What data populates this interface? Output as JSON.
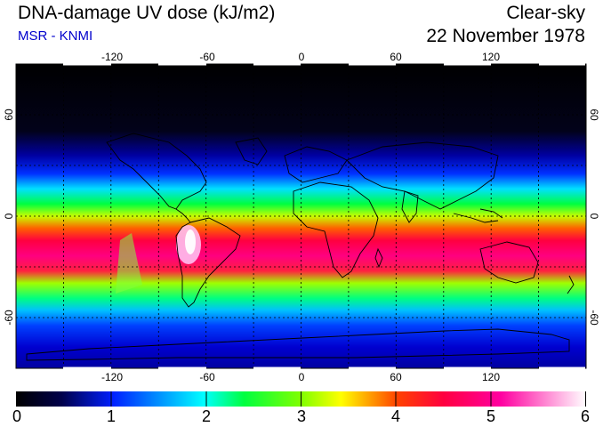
{
  "title": "DNA-damage UV dose (kJ/m2)",
  "source": "MSR - KNMI",
  "condition": "Clear-sky",
  "date": "22 November 1978",
  "colors": {
    "source_text": "#0000cc",
    "scale": [
      "#000000",
      "#000080",
      "#0000ff",
      "#00ffff",
      "#00ff00",
      "#ffff00",
      "#ff8000",
      "#ff0040",
      "#ff00a0",
      "#ffffff"
    ]
  },
  "map": {
    "lon_ticks": [
      "-120",
      "-60",
      "0",
      "60",
      "120"
    ],
    "lat_ticks": [
      "60",
      "0",
      "-60"
    ]
  },
  "colorbar": {
    "labels": [
      "0",
      "1",
      "2",
      "3",
      "4",
      "5",
      "6"
    ],
    "min": 0,
    "max": 6
  }
}
